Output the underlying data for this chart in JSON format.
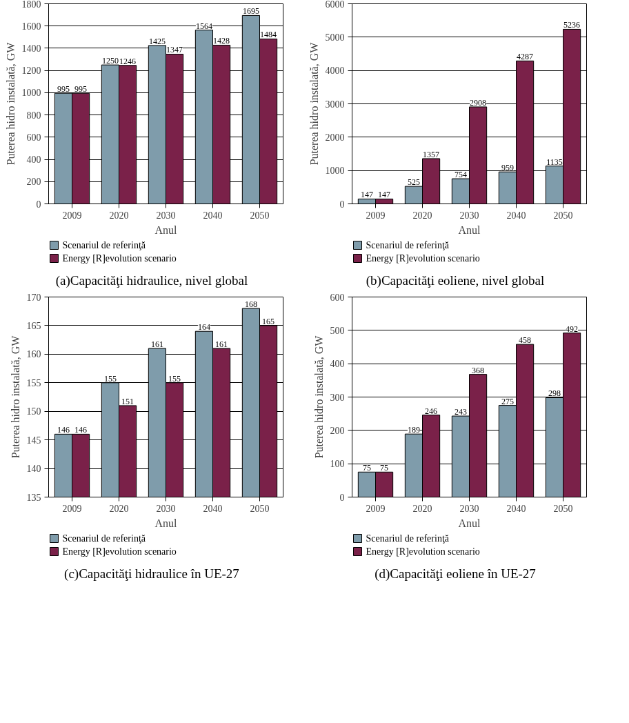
{
  "chart_data": [
    {
      "type": "bar",
      "title": "(a)Capacităţi hidraulice, nivel global",
      "xlabel": "Anul",
      "ylabel": "Puterea hidro instalată, GW",
      "categories": [
        "2009",
        "2020",
        "2030",
        "2040",
        "2050"
      ],
      "series": [
        {
          "name": "Scenariul de referinţă",
          "color": "#7f9cab",
          "values": [
            995,
            1250,
            1425,
            1564,
            1695
          ]
        },
        {
          "name": "Energy [R]evolution scenario",
          "color": "#7a2149",
          "values": [
            995,
            1246,
            1347,
            1428,
            1484
          ]
        }
      ],
      "ylim": [
        0,
        1800
      ],
      "yticks": [
        0,
        200,
        400,
        600,
        800,
        1000,
        1200,
        1400,
        1600,
        1800
      ],
      "grid": "y",
      "legend": "bottom",
      "data_labels": true
    },
    {
      "type": "bar",
      "title": "(b)Capacităţi eoliene, nivel global",
      "xlabel": "Anul",
      "ylabel": "Puterea hidro instalată, GW",
      "categories": [
        "2009",
        "2020",
        "2030",
        "2040",
        "2050"
      ],
      "series": [
        {
          "name": "Scenariul de referinţă",
          "color": "#7f9cab",
          "values": [
            147,
            525,
            754,
            959,
            1135
          ]
        },
        {
          "name": "Energy [R]evolution scenario",
          "color": "#7a2149",
          "values": [
            147,
            1357,
            2908,
            4287,
            5236
          ]
        }
      ],
      "ylim": [
        0,
        6000
      ],
      "yticks": [
        0,
        1000,
        2000,
        3000,
        4000,
        5000,
        6000
      ],
      "grid": "y",
      "legend": "bottom",
      "data_labels": true
    },
    {
      "type": "bar",
      "title": "(c)Capacităţi hidraulice în UE-27",
      "xlabel": "Anul",
      "ylabel": "Puterea hidro instalată, GW",
      "categories": [
        "2009",
        "2020",
        "2030",
        "2040",
        "2050"
      ],
      "series": [
        {
          "name": "Scenariul de referinţă",
          "color": "#7f9cab",
          "values": [
            146,
            155,
            161,
            164,
            168
          ]
        },
        {
          "name": "Energy [R]evolution scenario",
          "color": "#7a2149",
          "values": [
            146,
            151,
            155,
            161,
            165
          ]
        }
      ],
      "ylim": [
        135,
        170
      ],
      "yticks": [
        135,
        140,
        145,
        150,
        155,
        160,
        165,
        170
      ],
      "grid": "y",
      "legend": "bottom",
      "data_labels": true
    },
    {
      "type": "bar",
      "title": "(d)Capacităţi eoliene în UE-27",
      "xlabel": "Anul",
      "ylabel": "Puterea hidro instalată, GW",
      "categories": [
        "2009",
        "2020",
        "2030",
        "2040",
        "2050"
      ],
      "series": [
        {
          "name": "Scenariul de referinţă",
          "color": "#7f9cab",
          "values": [
            75,
            189,
            243,
            275,
            298
          ]
        },
        {
          "name": "Energy [R]evolution scenario",
          "color": "#7a2149",
          "values": [
            75,
            246,
            368,
            458,
            492
          ]
        }
      ],
      "ylim": [
        0,
        600
      ],
      "yticks": [
        0,
        100,
        200,
        300,
        400,
        500,
        600
      ],
      "grid": "y",
      "legend": "bottom",
      "data_labels": true
    }
  ]
}
